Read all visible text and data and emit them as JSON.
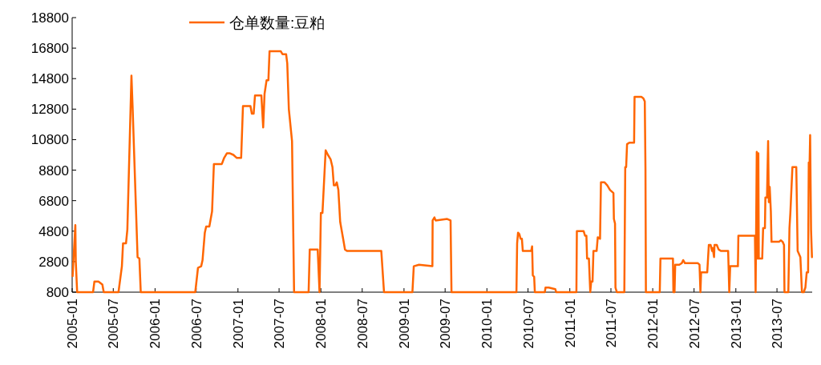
{
  "chart_data": {
    "type": "line",
    "legend": "top",
    "series": [
      {
        "name": "仓单数量:豆粕",
        "color": "#ff6600",
        "x": [
          "2005-01-03",
          "2005-01-15",
          "2005-01-17",
          "2005-01-23",
          "2005-04-03",
          "2005-04-09",
          "2005-04-27",
          "2005-05-14",
          "2005-05-20",
          "2005-06-12",
          "2005-07-24",
          "2005-08-08",
          "2005-08-13",
          "2005-08-26",
          "2005-09-01",
          "2005-09-19",
          "2005-09-24",
          "2005-10-16",
          "2005-10-24",
          "2005-10-30",
          "2006-06-27",
          "2006-07-09",
          "2006-07-23",
          "2006-07-29",
          "2006-08-08",
          "2006-08-14",
          "2006-08-28",
          "2006-09-09",
          "2006-09-17",
          "2006-10-22",
          "2006-11-01",
          "2006-11-13",
          "2006-11-27",
          "2006-12-12",
          "2006-12-27",
          "2007-01-15",
          "2007-01-23",
          "2007-02-25",
          "2007-03-03",
          "2007-03-11",
          "2007-03-17",
          "2007-04-14",
          "2007-04-22",
          "2007-04-28",
          "2007-05-07",
          "2007-05-15",
          "2007-05-20",
          "2007-05-30",
          "2007-07-08",
          "2007-07-16",
          "2007-08-01",
          "2007-08-06",
          "2007-08-13",
          "2007-08-27",
          "2007-09-05",
          "2007-11-08",
          "2007-11-13",
          "2007-12-18",
          "2007-12-26",
          "2008-01-01",
          "2008-01-08",
          "2008-01-22",
          "2008-02-01",
          "2008-02-13",
          "2008-02-21",
          "2008-02-27",
          "2008-03-05",
          "2008-03-11",
          "2008-03-18",
          "2008-03-26",
          "2008-04-08",
          "2008-04-16",
          "2008-04-25",
          "2008-09-23",
          "2008-10-05",
          "2009-02-07",
          "2009-02-13",
          "2009-03-08",
          "2009-05-06",
          "2009-05-07",
          "2009-05-15",
          "2009-05-20",
          "2009-07-10",
          "2009-07-25",
          "2009-07-29",
          "2010-05-11",
          "2010-05-14",
          "2010-05-18",
          "2010-05-24",
          "2010-05-29",
          "2010-06-04",
          "2010-06-08",
          "2010-07-15",
          "2010-07-19",
          "2010-07-22",
          "2010-07-28",
          "2010-07-31",
          "2010-09-13",
          "2010-09-16",
          "2010-09-30",
          "2010-10-29",
          "2010-11-02",
          "2011-01-30",
          "2011-02-01",
          "2011-03-03",
          "2011-03-09",
          "2011-03-15",
          "2011-03-18",
          "2011-03-26",
          "2011-04-01",
          "2011-04-05",
          "2011-04-11",
          "2011-04-15",
          "2011-04-29",
          "2011-05-04",
          "2011-05-14",
          "2011-05-18",
          "2011-06-03",
          "2011-06-15",
          "2011-06-27",
          "2011-07-12",
          "2011-07-14",
          "2011-07-19",
          "2011-07-21",
          "2011-07-27",
          "2011-08-29",
          "2011-09-02",
          "2011-09-06",
          "2011-09-10",
          "2011-09-20",
          "2011-10-11",
          "2011-10-13",
          "2011-10-19",
          "2011-11-13",
          "2011-11-21",
          "2011-11-27",
          "2011-11-30",
          "2011-12-02",
          "2012-02-01",
          "2012-02-04",
          "2012-03-30",
          "2012-04-01",
          "2012-04-04",
          "2012-04-06",
          "2012-04-09",
          "2012-04-27",
          "2012-05-08",
          "2012-05-14",
          "2012-05-22",
          "2012-07-18",
          "2012-07-25",
          "2012-07-29",
          "2012-08-01",
          "2012-08-28",
          "2012-09-04",
          "2012-09-12",
          "2012-09-18",
          "2012-09-21",
          "2012-09-27",
          "2012-09-29",
          "2012-10-09",
          "2012-10-17",
          "2012-10-27",
          "2012-11-28",
          "2012-12-03",
          "2012-12-07",
          "2013-01-10",
          "2013-01-12",
          "2013-03-26",
          "2013-03-29",
          "2013-04-03",
          "2013-04-06",
          "2013-04-10",
          "2013-04-12",
          "2013-04-27",
          "2013-05-01",
          "2013-05-09",
          "2013-05-11",
          "2013-05-18",
          "2013-05-23",
          "2013-05-26",
          "2013-05-30",
          "2013-06-04",
          "2013-06-07",
          "2013-07-10",
          "2013-07-18",
          "2013-07-26",
          "2013-08-01",
          "2013-08-03",
          "2013-08-20",
          "2013-08-25",
          "2013-08-29",
          "2013-09-07",
          "2013-09-24",
          "2013-09-30",
          "2013-10-12",
          "2013-10-19",
          "2013-10-27",
          "2013-11-03",
          "2013-11-09",
          "2013-11-15",
          "2013-11-18",
          "2013-11-20",
          "2013-11-24",
          "2013-11-28",
          "2013-12-02"
        ],
        "values": [
          1850,
          5200,
          2800,
          800,
          800,
          1500,
          1500,
          1300,
          800,
          800,
          800,
          2500,
          4000,
          4000,
          4900,
          15000,
          13000,
          3100,
          3000,
          800,
          800,
          2400,
          2500,
          2900,
          4700,
          5100,
          5100,
          6100,
          9200,
          9200,
          9600,
          9900,
          9900,
          9800,
          9600,
          9600,
          13000,
          13000,
          12500,
          12500,
          13700,
          13700,
          11600,
          13800,
          14700,
          14700,
          16600,
          16600,
          16600,
          16400,
          16400,
          15800,
          12800,
          10700,
          800,
          800,
          3600,
          3600,
          800,
          6000,
          6000,
          10100,
          9800,
          9500,
          9000,
          7800,
          7800,
          8000,
          7500,
          5400,
          4300,
          3600,
          3500,
          3500,
          800,
          800,
          2500,
          2600,
          2500,
          5500,
          5700,
          5500,
          5600,
          5500,
          800,
          800,
          4000,
          4700,
          4600,
          4300,
          4300,
          3500,
          3500,
          3800,
          1900,
          1800,
          800,
          800,
          1100,
          1100,
          1000,
          800,
          800,
          4800,
          4800,
          4500,
          4500,
          3000,
          3000,
          800,
          1500,
          1500,
          3500,
          3500,
          4400,
          4300,
          8000,
          8000,
          7800,
          7500,
          7300,
          5600,
          5300,
          1100,
          800,
          800,
          9000,
          9000,
          10500,
          10600,
          10600,
          13600,
          13600,
          13600,
          13500,
          13300,
          8900,
          800,
          800,
          3000,
          3000,
          800,
          2000,
          800,
          2600,
          2600,
          2700,
          2900,
          2700,
          2700,
          2600,
          800,
          2100,
          2100,
          3900,
          3900,
          3500,
          3700,
          3100,
          3900,
          3900,
          3600,
          3500,
          3500,
          800,
          2500,
          2500,
          4500,
          4500,
          800,
          10000,
          3000,
          9900,
          3000,
          3000,
          5000,
          5000,
          7000,
          7000,
          10700,
          6700,
          7700,
          6100,
          4100,
          4100,
          4200,
          4100,
          3900,
          800,
          800,
          5000,
          6000,
          9000,
          9000,
          3500,
          3100,
          800,
          800,
          1100,
          2100,
          2100,
          9300,
          8000,
          11100,
          4900,
          3100
        ]
      }
    ],
    "xlim": [
      "2005-01-01",
      "2013-12-03"
    ],
    "xticks": [
      "2005-01",
      "2005-07",
      "2006-01",
      "2006-07",
      "2007-01",
      "2007-07",
      "2008-01",
      "2008-07",
      "2009-01",
      "2009-07",
      "2010-01",
      "2010-07",
      "2011-01",
      "2011-07",
      "2012-01",
      "2012-07",
      "2013-01",
      "2013-07"
    ],
    "ylim": [
      800,
      18800
    ],
    "yticks": [
      800,
      2800,
      4800,
      6800,
      8800,
      10800,
      12800,
      14800,
      16800,
      18800
    ],
    "grid": false,
    "line_style": "solid",
    "marker": "none"
  }
}
